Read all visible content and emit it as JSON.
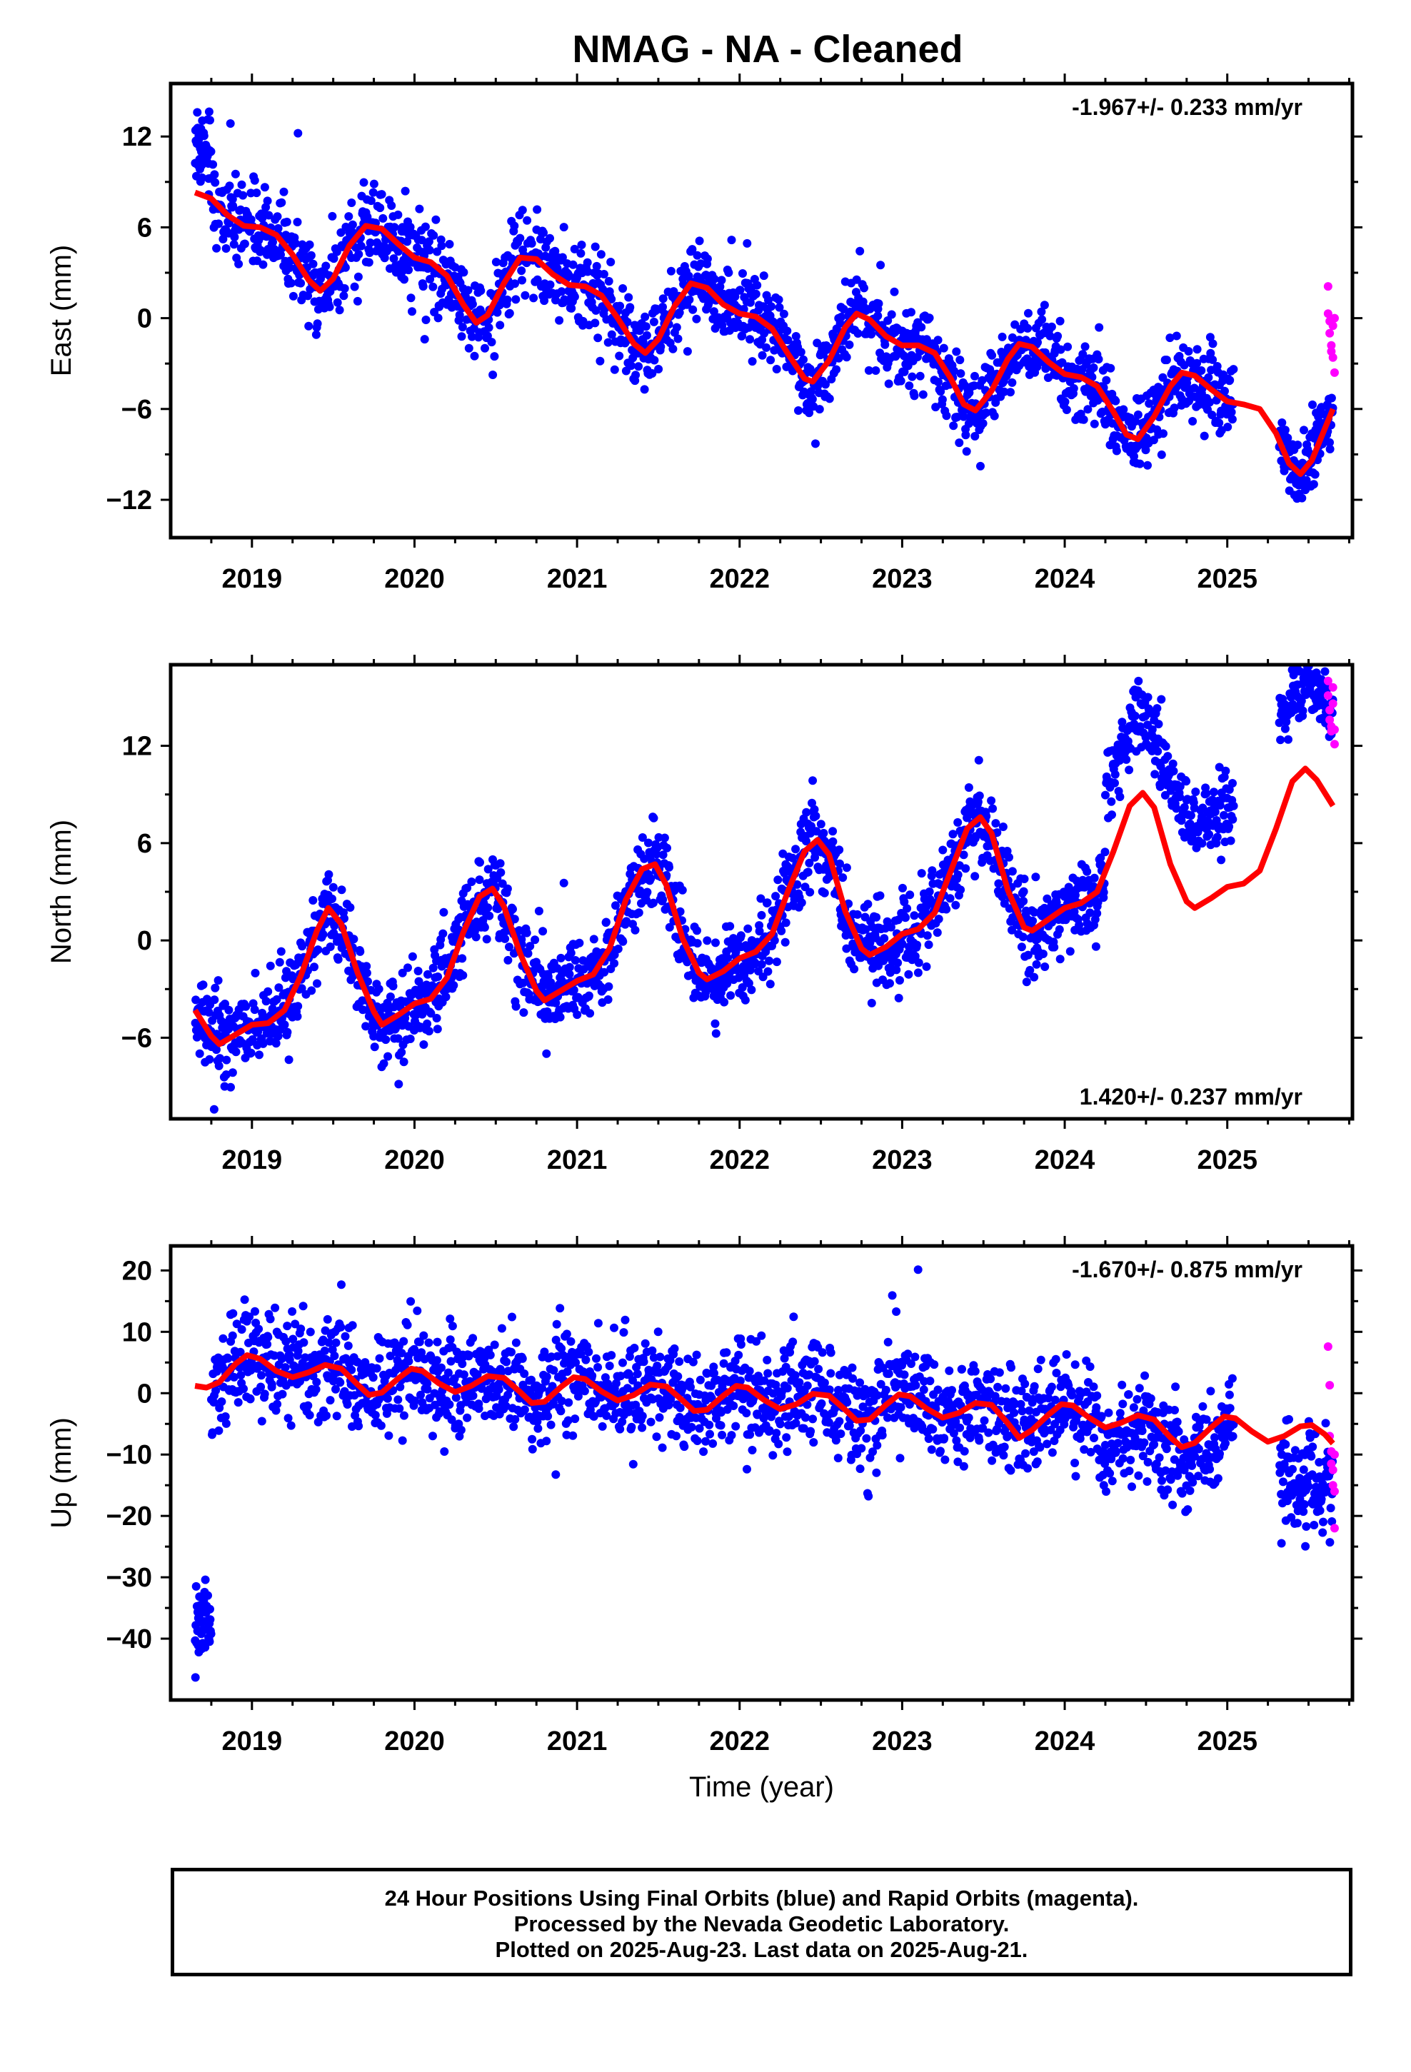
{
  "chart_title": "NMAG  - NA - Cleaned",
  "colors": {
    "final": "#0000ff",
    "rapid": "#ff00ff",
    "model": "#ff0000"
  },
  "chart_data": [
    {
      "type": "scatter",
      "ylabel": "East (mm)",
      "xlabel": "",
      "xlim": [
        2018.5,
        2025.77
      ],
      "ylim": [
        -14.5,
        15.5
      ],
      "x_ticks": [
        "2019",
        "2020",
        "2021",
        "2022",
        "2023",
        "2024",
        "2025"
      ],
      "y_ticks": [
        "12",
        "6",
        "0",
        "−6",
        "−12"
      ],
      "y_tick_values": [
        12,
        6,
        0,
        -6,
        -12
      ],
      "rate": "-1.967+/- 0.233 mm/yr",
      "rate_position": "top-right",
      "model_curve": [
        [
          2018.65,
          8.3
        ],
        [
          2018.75,
          7.9
        ],
        [
          2018.85,
          6.8
        ],
        [
          2018.95,
          6.1
        ],
        [
          2019.05,
          6.0
        ],
        [
          2019.15,
          5.5
        ],
        [
          2019.25,
          4.2
        ],
        [
          2019.35,
          2.5
        ],
        [
          2019.42,
          1.8
        ],
        [
          2019.5,
          2.6
        ],
        [
          2019.6,
          4.8
        ],
        [
          2019.7,
          6.1
        ],
        [
          2019.8,
          5.9
        ],
        [
          2019.9,
          4.9
        ],
        [
          2020.0,
          4.0
        ],
        [
          2020.1,
          3.7
        ],
        [
          2020.2,
          2.8
        ],
        [
          2020.3,
          0.9
        ],
        [
          2020.38,
          -0.3
        ],
        [
          2020.45,
          0.2
        ],
        [
          2020.55,
          2.3
        ],
        [
          2020.65,
          4.0
        ],
        [
          2020.75,
          3.9
        ],
        [
          2020.85,
          2.9
        ],
        [
          2020.95,
          2.2
        ],
        [
          2021.05,
          2.1
        ],
        [
          2021.15,
          1.5
        ],
        [
          2021.25,
          0.0
        ],
        [
          2021.35,
          -1.7
        ],
        [
          2021.42,
          -2.3
        ],
        [
          2021.5,
          -1.4
        ],
        [
          2021.6,
          0.8
        ],
        [
          2021.7,
          2.3
        ],
        [
          2021.8,
          2.0
        ],
        [
          2021.9,
          0.9
        ],
        [
          2022.0,
          0.3
        ],
        [
          2022.1,
          0.1
        ],
        [
          2022.2,
          -0.7
        ],
        [
          2022.3,
          -2.4
        ],
        [
          2022.4,
          -4.0
        ],
        [
          2022.45,
          -4.2
        ],
        [
          2022.55,
          -2.8
        ],
        [
          2022.65,
          -0.6
        ],
        [
          2022.72,
          0.3
        ],
        [
          2022.8,
          -0.1
        ],
        [
          2022.9,
          -1.2
        ],
        [
          2023.0,
          -1.8
        ],
        [
          2023.1,
          -1.8
        ],
        [
          2023.2,
          -2.3
        ],
        [
          2023.3,
          -4.0
        ],
        [
          2023.38,
          -5.7
        ],
        [
          2023.45,
          -6.1
        ],
        [
          2023.55,
          -4.8
        ],
        [
          2023.65,
          -2.7
        ],
        [
          2023.72,
          -1.7
        ],
        [
          2023.8,
          -1.9
        ],
        [
          2023.9,
          -2.9
        ],
        [
          2024.0,
          -3.7
        ],
        [
          2024.1,
          -3.9
        ],
        [
          2024.2,
          -4.5
        ],
        [
          2024.3,
          -6.2
        ],
        [
          2024.38,
          -7.7
        ],
        [
          2024.45,
          -8.0
        ],
        [
          2024.55,
          -6.5
        ],
        [
          2024.65,
          -4.5
        ],
        [
          2024.72,
          -3.6
        ],
        [
          2024.8,
          -3.8
        ],
        [
          2024.9,
          -4.7
        ],
        [
          2025.0,
          -5.5
        ],
        [
          2025.1,
          -5.7
        ],
        [
          2025.2,
          -6.0
        ],
        [
          2025.3,
          -7.6
        ],
        [
          2025.38,
          -9.6
        ],
        [
          2025.45,
          -10.3
        ],
        [
          2025.52,
          -9.4
        ],
        [
          2025.6,
          -7.3
        ],
        [
          2025.65,
          -6.0
        ]
      ],
      "data_segments": [
        {
          "x0": 2018.65,
          "x1": 2018.75,
          "offset": 3.5,
          "scatter": 1.5,
          "n": 45
        },
        {
          "x0": 2018.75,
          "x1": 2025.04,
          "offset": 0.0,
          "scatter": 1.3,
          "n": 1750
        },
        {
          "x0": 2025.32,
          "x1": 2025.65,
          "offset": 0.3,
          "scatter": 1.3,
          "n": 110
        }
      ],
      "rapid_points": [
        [
          2025.62,
          2.1
        ],
        [
          2025.62,
          0.3
        ],
        [
          2025.63,
          -0.2
        ],
        [
          2025.63,
          -1.0
        ],
        [
          2025.64,
          -1.8
        ],
        [
          2025.64,
          -2.2
        ],
        [
          2025.65,
          -0.5
        ],
        [
          2025.65,
          -2.6
        ],
        [
          2025.66,
          0.0
        ],
        [
          2025.66,
          -3.6
        ]
      ]
    },
    {
      "type": "scatter",
      "ylabel": "North (mm)",
      "xlabel": "",
      "xlim": [
        2018.5,
        2025.77
      ],
      "ylim": [
        -11,
        17
      ],
      "x_ticks": [
        "2019",
        "2020",
        "2021",
        "2022",
        "2023",
        "2024",
        "2025"
      ],
      "y_ticks": [
        "12",
        "6",
        "0",
        "−6"
      ],
      "y_tick_values": [
        12,
        6,
        0,
        -6
      ],
      "rate": "1.420+/- 0.237 mm/yr",
      "rate_position": "bottom-right",
      "model_curve": [
        [
          2018.65,
          -4.3
        ],
        [
          2018.75,
          -5.9
        ],
        [
          2018.8,
          -6.4
        ],
        [
          2018.9,
          -5.8
        ],
        [
          2019.0,
          -5.2
        ],
        [
          2019.1,
          -5.1
        ],
        [
          2019.2,
          -4.3
        ],
        [
          2019.3,
          -2.2
        ],
        [
          2019.4,
          0.6
        ],
        [
          2019.47,
          2.0
        ],
        [
          2019.55,
          1.0
        ],
        [
          2019.65,
          -2.0
        ],
        [
          2019.75,
          -4.4
        ],
        [
          2019.8,
          -5.2
        ],
        [
          2019.9,
          -4.6
        ],
        [
          2020.0,
          -3.9
        ],
        [
          2020.1,
          -3.6
        ],
        [
          2020.2,
          -2.3
        ],
        [
          2020.3,
          0.5
        ],
        [
          2020.4,
          2.7
        ],
        [
          2020.48,
          3.2
        ],
        [
          2020.55,
          2.1
        ],
        [
          2020.65,
          -0.8
        ],
        [
          2020.75,
          -3.1
        ],
        [
          2020.8,
          -3.7
        ],
        [
          2020.9,
          -3.1
        ],
        [
          2021.0,
          -2.5
        ],
        [
          2021.1,
          -2.1
        ],
        [
          2021.2,
          -0.5
        ],
        [
          2021.3,
          2.5
        ],
        [
          2021.4,
          4.4
        ],
        [
          2021.48,
          4.7
        ],
        [
          2021.55,
          3.4
        ],
        [
          2021.65,
          0.1
        ],
        [
          2021.75,
          -2.0
        ],
        [
          2021.8,
          -2.4
        ],
        [
          2021.9,
          -1.9
        ],
        [
          2022.0,
          -1.1
        ],
        [
          2022.1,
          -0.7
        ],
        [
          2022.2,
          0.4
        ],
        [
          2022.3,
          3.1
        ],
        [
          2022.4,
          5.5
        ],
        [
          2022.48,
          6.2
        ],
        [
          2022.55,
          5.3
        ],
        [
          2022.65,
          1.8
        ],
        [
          2022.75,
          -0.5
        ],
        [
          2022.8,
          -0.9
        ],
        [
          2022.9,
          -0.4
        ],
        [
          2023.0,
          0.4
        ],
        [
          2023.1,
          0.7
        ],
        [
          2023.2,
          1.7
        ],
        [
          2023.3,
          4.3
        ],
        [
          2023.4,
          6.9
        ],
        [
          2023.48,
          7.6
        ],
        [
          2023.55,
          6.6
        ],
        [
          2023.65,
          3.1
        ],
        [
          2023.75,
          0.8
        ],
        [
          2023.8,
          0.6
        ],
        [
          2023.9,
          1.3
        ],
        [
          2024.0,
          2.0
        ],
        [
          2024.1,
          2.3
        ],
        [
          2024.2,
          3.0
        ],
        [
          2024.3,
          5.5
        ],
        [
          2024.4,
          8.3
        ],
        [
          2024.48,
          9.1
        ],
        [
          2024.55,
          8.2
        ],
        [
          2024.65,
          4.7
        ],
        [
          2024.75,
          2.4
        ],
        [
          2024.8,
          2.0
        ],
        [
          2024.9,
          2.6
        ],
        [
          2025.0,
          3.3
        ],
        [
          2025.1,
          3.5
        ],
        [
          2025.2,
          4.3
        ],
        [
          2025.3,
          6.9
        ],
        [
          2025.4,
          9.8
        ],
        [
          2025.48,
          10.6
        ],
        [
          2025.55,
          9.9
        ],
        [
          2025.65,
          8.3
        ]
      ],
      "data_segments": [
        {
          "x0": 2018.65,
          "x1": 2024.25,
          "offset": 0.0,
          "scatter": 1.3,
          "n": 1650
        },
        {
          "x0": 2024.25,
          "x1": 2025.04,
          "offset": 5.0,
          "scatter": 1.2,
          "n": 230
        },
        {
          "x0": 2025.32,
          "x1": 2025.65,
          "offset": 5.5,
          "scatter": 1.1,
          "n": 110
        }
      ],
      "rapid_points": [
        [
          2025.62,
          16.0
        ],
        [
          2025.62,
          15.1
        ],
        [
          2025.63,
          14.2
        ],
        [
          2025.63,
          13.6
        ],
        [
          2025.64,
          13.2
        ],
        [
          2025.64,
          12.9
        ],
        [
          2025.65,
          15.6
        ],
        [
          2025.65,
          14.6
        ],
        [
          2025.66,
          13.0
        ],
        [
          2025.66,
          12.1
        ]
      ]
    },
    {
      "type": "scatter",
      "ylabel": "Up (mm)",
      "xlabel": "Time (year)",
      "xlim": [
        2018.5,
        2025.77
      ],
      "ylim": [
        -50,
        24
      ],
      "x_ticks": [
        "2019",
        "2020",
        "2021",
        "2022",
        "2023",
        "2024",
        "2025"
      ],
      "y_ticks": [
        "20",
        "10",
        "0",
        "−10",
        "−20",
        "−30",
        "−40"
      ],
      "y_tick_values": [
        20,
        10,
        0,
        -10,
        -20,
        -30,
        -40
      ],
      "rate": "-1.670+/- 0.875 mm/yr",
      "rate_position": "top-right",
      "model_curve": [
        [
          2018.65,
          1.2
        ],
        [
          2018.72,
          0.9
        ],
        [
          2018.8,
          1.8
        ],
        [
          2018.9,
          4.8
        ],
        [
          2018.97,
          6.2
        ],
        [
          2019.05,
          5.6
        ],
        [
          2019.15,
          3.6
        ],
        [
          2019.25,
          2.6
        ],
        [
          2019.35,
          3.4
        ],
        [
          2019.45,
          4.6
        ],
        [
          2019.55,
          4.0
        ],
        [
          2019.65,
          1.4
        ],
        [
          2019.72,
          -0.3
        ],
        [
          2019.8,
          0.1
        ],
        [
          2019.9,
          2.4
        ],
        [
          2019.98,
          4.0
        ],
        [
          2020.05,
          3.6
        ],
        [
          2020.15,
          1.6
        ],
        [
          2020.25,
          0.2
        ],
        [
          2020.35,
          1.2
        ],
        [
          2020.45,
          2.8
        ],
        [
          2020.55,
          2.5
        ],
        [
          2020.65,
          0.2
        ],
        [
          2020.72,
          -1.6
        ],
        [
          2020.8,
          -1.4
        ],
        [
          2020.9,
          1.0
        ],
        [
          2020.98,
          2.6
        ],
        [
          2021.05,
          2.3
        ],
        [
          2021.15,
          0.3
        ],
        [
          2021.25,
          -1.2
        ],
        [
          2021.35,
          -0.3
        ],
        [
          2021.45,
          1.4
        ],
        [
          2021.55,
          1.1
        ],
        [
          2021.65,
          -1.2
        ],
        [
          2021.72,
          -2.9
        ],
        [
          2021.8,
          -2.7
        ],
        [
          2021.9,
          -0.4
        ],
        [
          2021.98,
          1.2
        ],
        [
          2022.05,
          0.9
        ],
        [
          2022.15,
          -1.1
        ],
        [
          2022.25,
          -2.6
        ],
        [
          2022.35,
          -1.8
        ],
        [
          2022.45,
          -0.1
        ],
        [
          2022.55,
          -0.4
        ],
        [
          2022.65,
          -2.7
        ],
        [
          2022.72,
          -4.5
        ],
        [
          2022.8,
          -4.3
        ],
        [
          2022.9,
          -1.9
        ],
        [
          2022.98,
          -0.2
        ],
        [
          2023.05,
          -0.5
        ],
        [
          2023.15,
          -2.5
        ],
        [
          2023.25,
          -4.0
        ],
        [
          2023.35,
          -3.2
        ],
        [
          2023.45,
          -1.6
        ],
        [
          2023.55,
          -1.9
        ],
        [
          2023.65,
          -4.9
        ],
        [
          2023.72,
          -7.3
        ],
        [
          2023.8,
          -6.0
        ],
        [
          2023.9,
          -3.5
        ],
        [
          2023.98,
          -1.8
        ],
        [
          2024.05,
          -2.0
        ],
        [
          2024.15,
          -4.0
        ],
        [
          2024.25,
          -5.6
        ],
        [
          2024.35,
          -4.8
        ],
        [
          2024.45,
          -3.6
        ],
        [
          2024.55,
          -4.3
        ],
        [
          2024.65,
          -7.2
        ],
        [
          2024.72,
          -8.8
        ],
        [
          2024.8,
          -8.1
        ],
        [
          2024.9,
          -5.6
        ],
        [
          2024.98,
          -3.8
        ],
        [
          2025.05,
          -4.1
        ],
        [
          2025.15,
          -6.2
        ],
        [
          2025.25,
          -7.9
        ],
        [
          2025.35,
          -7.0
        ],
        [
          2025.45,
          -5.4
        ],
        [
          2025.52,
          -5.2
        ],
        [
          2025.6,
          -6.7
        ],
        [
          2025.65,
          -8.2
        ]
      ],
      "data_segments": [
        {
          "x0": 2018.65,
          "x1": 2018.75,
          "offset": -38.0,
          "scatter": 2.8,
          "n": 45
        },
        {
          "x0": 2018.75,
          "x1": 2024.2,
          "offset": 0.5,
          "scatter": 4.2,
          "n": 1550
        },
        {
          "x0": 2024.2,
          "x1": 2025.04,
          "offset": -2.5,
          "scatter": 3.8,
          "n": 240
        },
        {
          "x0": 2025.32,
          "x1": 2025.65,
          "offset": -8.0,
          "scatter": 4.0,
          "n": 110
        }
      ],
      "rapid_points": [
        [
          2025.62,
          7.6
        ],
        [
          2025.63,
          1.3
        ],
        [
          2025.63,
          -7.0
        ],
        [
          2025.64,
          -9.5
        ],
        [
          2025.64,
          -11.5
        ],
        [
          2025.65,
          -12.5
        ],
        [
          2025.65,
          -15.0
        ],
        [
          2025.66,
          -16.0
        ],
        [
          2025.66,
          -22.0
        ],
        [
          2025.66,
          -10.0
        ]
      ]
    }
  ],
  "footer": {
    "line1": "24 Hour Positions Using Final Orbits (blue) and Rapid Orbits (magenta).",
    "line2": "Processed by the Nevada Geodetic Laboratory.",
    "line3": "Plotted on 2025-Aug-23. Last data on 2025-Aug-21."
  }
}
